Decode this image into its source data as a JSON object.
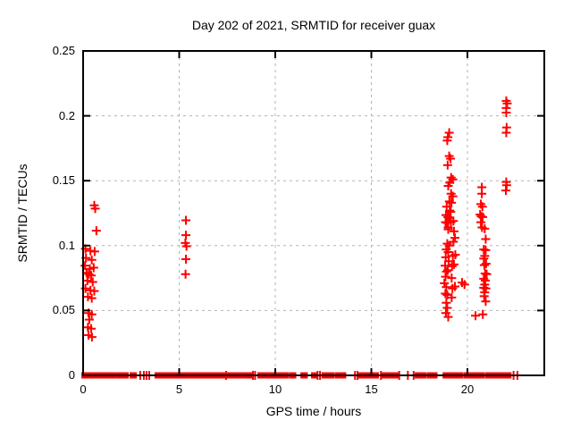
{
  "chart_data": {
    "type": "scatter",
    "title": "Day 202 of 2021, SRMTID for receiver guax",
    "xlabel": "GPS time / hours",
    "ylabel": "SRMTID / TECUs",
    "xlim": [
      0,
      24
    ],
    "ylim": [
      0,
      0.25
    ],
    "xticks": [
      0,
      5,
      10,
      15,
      20
    ],
    "xtick_labels": [
      "0",
      "5",
      "10",
      "15",
      "20"
    ],
    "yticks": [
      0,
      0.05,
      0.1,
      0.15,
      0.2,
      0.25
    ],
    "ytick_labels": [
      "0",
      "0.05",
      "0.1",
      "0.15",
      "0.2",
      "0.25"
    ],
    "grid": true,
    "grid_style": "dashed",
    "legend": false,
    "marker": "plus",
    "marker_color": "#ff0000",
    "grid_color": "#b3b3b3",
    "border_color": "#000000",
    "series": [
      {
        "name": "SRMTID",
        "points": [
          [
            0.58,
            0.131
          ],
          [
            0.63,
            0.1285
          ],
          [
            0.69,
            0.1115
          ],
          [
            0.12,
            0.0975
          ],
          [
            0.38,
            0.096
          ],
          [
            0.6,
            0.0955
          ],
          [
            0.15,
            0.0905
          ],
          [
            0.45,
            0.089
          ],
          [
            0.1,
            0.0845
          ],
          [
            0.35,
            0.082
          ],
          [
            0.55,
            0.083
          ],
          [
            0.18,
            0.079
          ],
          [
            0.3,
            0.078
          ],
          [
            0.42,
            0.077
          ],
          [
            0.22,
            0.073
          ],
          [
            0.5,
            0.072
          ],
          [
            0.12,
            0.067
          ],
          [
            0.38,
            0.0655
          ],
          [
            0.58,
            0.065
          ],
          [
            0.25,
            0.0605
          ],
          [
            0.45,
            0.0595
          ],
          [
            0.28,
            0.048
          ],
          [
            0.45,
            0.047
          ],
          [
            0.32,
            0.043
          ],
          [
            0.25,
            0.037
          ],
          [
            0.42,
            0.036
          ],
          [
            0.28,
            0.031
          ],
          [
            0.46,
            0.0295
          ],
          [
            5.35,
            0.1195
          ],
          [
            5.35,
            0.108
          ],
          [
            5.32,
            0.102
          ],
          [
            5.38,
            0.0995
          ],
          [
            5.35,
            0.0895
          ],
          [
            5.33,
            0.078
          ],
          [
            19.05,
            0.187
          ],
          [
            18.98,
            0.1835
          ],
          [
            18.95,
            0.181
          ],
          [
            19.05,
            0.169
          ],
          [
            19.12,
            0.167
          ],
          [
            18.97,
            0.162
          ],
          [
            19.15,
            0.1525
          ],
          [
            19.24,
            0.151
          ],
          [
            19.08,
            0.1485
          ],
          [
            19.0,
            0.146
          ],
          [
            19.15,
            0.14
          ],
          [
            19.24,
            0.138
          ],
          [
            19.06,
            0.134
          ],
          [
            19.17,
            0.133
          ],
          [
            18.92,
            0.13
          ],
          [
            19.08,
            0.127
          ],
          [
            19.13,
            0.126
          ],
          [
            18.88,
            0.1235
          ],
          [
            18.98,
            0.122
          ],
          [
            19.06,
            0.1215
          ],
          [
            18.86,
            0.118
          ],
          [
            18.94,
            0.1175
          ],
          [
            19.14,
            0.118
          ],
          [
            19.27,
            0.119
          ],
          [
            19.0,
            0.114
          ],
          [
            19.0,
            0.1125
          ],
          [
            19.3,
            0.111
          ],
          [
            19.35,
            0.106
          ],
          [
            19.27,
            0.103
          ],
          [
            18.95,
            0.1015
          ],
          [
            19.05,
            0.1
          ],
          [
            18.9,
            0.097
          ],
          [
            19.0,
            0.095
          ],
          [
            18.87,
            0.091
          ],
          [
            19.24,
            0.092
          ],
          [
            19.37,
            0.093
          ],
          [
            19.02,
            0.088
          ],
          [
            18.84,
            0.0845
          ],
          [
            19.2,
            0.084
          ],
          [
            19.3,
            0.0855
          ],
          [
            18.91,
            0.08
          ],
          [
            18.98,
            0.081
          ],
          [
            18.86,
            0.076
          ],
          [
            19.18,
            0.075
          ],
          [
            18.8,
            0.071
          ],
          [
            18.9,
            0.068
          ],
          [
            19.22,
            0.067
          ],
          [
            19.35,
            0.0685
          ],
          [
            18.85,
            0.063
          ],
          [
            18.95,
            0.062
          ],
          [
            19.18,
            0.06
          ],
          [
            18.9,
            0.056
          ],
          [
            18.95,
            0.052
          ],
          [
            18.88,
            0.048
          ],
          [
            19.0,
            0.045
          ],
          [
            19.72,
            0.0715
          ],
          [
            19.85,
            0.07
          ],
          [
            20.75,
            0.145
          ],
          [
            20.75,
            0.14
          ],
          [
            20.7,
            0.132
          ],
          [
            20.78,
            0.13
          ],
          [
            20.66,
            0.124
          ],
          [
            20.72,
            0.1225
          ],
          [
            20.79,
            0.122
          ],
          [
            20.7,
            0.118
          ],
          [
            20.76,
            0.114
          ],
          [
            20.9,
            0.113
          ],
          [
            20.95,
            0.105
          ],
          [
            20.85,
            0.097
          ],
          [
            20.95,
            0.0965
          ],
          [
            20.9,
            0.092
          ],
          [
            20.85,
            0.09
          ],
          [
            20.97,
            0.086
          ],
          [
            20.88,
            0.085
          ],
          [
            20.92,
            0.0785
          ],
          [
            21.0,
            0.078
          ],
          [
            20.85,
            0.0745
          ],
          [
            20.93,
            0.073
          ],
          [
            20.9,
            0.07
          ],
          [
            20.85,
            0.0675
          ],
          [
            20.96,
            0.067
          ],
          [
            20.9,
            0.064
          ],
          [
            20.87,
            0.061
          ],
          [
            20.95,
            0.057
          ],
          [
            20.42,
            0.046
          ],
          [
            20.8,
            0.047
          ],
          [
            22.02,
            0.2115
          ],
          [
            22.07,
            0.2095
          ],
          [
            22.02,
            0.206
          ],
          [
            22.02,
            0.2025
          ],
          [
            22.04,
            0.191
          ],
          [
            22.02,
            0.187
          ],
          [
            22.02,
            0.149
          ],
          [
            22.04,
            0.1465
          ],
          [
            22.0,
            0.1425
          ]
        ]
      }
    ],
    "baseline_zero": {
      "runs": [
        [
          0,
          0.1
        ],
        [
          0.23,
          0.37
        ],
        [
          0.51,
          0.6
        ],
        [
          0.74,
          0.93
        ],
        [
          1.02,
          1.12
        ],
        [
          1.26,
          1.34
        ],
        [
          1.44,
          1.58
        ],
        [
          1.77,
          1.86
        ],
        [
          1.95,
          2.05
        ],
        [
          2.19,
          2.28
        ],
        [
          2.51,
          2.7
        ],
        [
          3.81,
          4.05
        ],
        [
          4.23,
          4.42
        ],
        [
          4.51,
          4.6
        ],
        [
          4.7,
          5.02
        ],
        [
          5.12,
          5.21
        ],
        [
          5.3,
          5.63
        ],
        [
          5.72,
          5.95
        ],
        [
          6.05,
          6.42
        ],
        [
          6.47,
          7.07
        ],
        [
          7.16,
          7.35
        ],
        [
          7.58,
          8.74
        ],
        [
          9.16,
          9.3
        ],
        [
          9.4,
          9.63
        ],
        [
          9.72,
          9.86
        ],
        [
          9.95,
          10.2
        ],
        [
          10.3,
          10.42
        ],
        [
          10.45,
          10.6
        ],
        [
          10.8,
          11.0
        ],
        [
          11.4,
          11.6
        ],
        [
          11.95,
          12.1
        ],
        [
          12.5,
          12.8
        ],
        [
          12.9,
          13.0
        ],
        [
          13.2,
          13.35
        ],
        [
          13.42,
          13.6
        ],
        [
          14.4,
          14.7
        ],
        [
          14.8,
          15.1
        ],
        [
          15.2,
          15.3
        ],
        [
          15.6,
          15.9
        ],
        [
          16.05,
          16.2
        ],
        [
          16.25,
          16.35
        ],
        [
          17.35,
          17.6
        ],
        [
          17.7,
          17.8
        ],
        [
          18.0,
          18.1
        ],
        [
          18.25,
          18.35
        ],
        [
          18.8,
          19.0
        ],
        [
          19.05,
          19.4
        ],
        [
          19.5,
          19.7
        ],
        [
          19.9,
          20.1
        ],
        [
          20.2,
          20.5
        ],
        [
          20.6,
          20.8
        ],
        [
          21.0,
          21.3
        ],
        [
          21.4,
          21.9
        ],
        [
          21.95,
          22.05
        ],
        [
          22.1,
          22.2
        ]
      ],
      "singles": [
        2.97,
        3.16,
        3.3,
        3.44,
        7.44,
        8.84,
        8.95,
        12.2,
        12.33,
        14.15,
        14.28,
        15.5,
        16.45,
        16.9,
        17.2,
        22.4,
        22.6
      ]
    }
  }
}
